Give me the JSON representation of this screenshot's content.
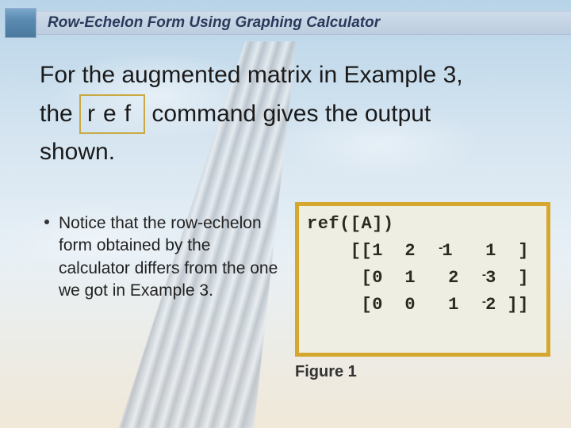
{
  "header": {
    "title": "Row-Echelon Form Using Graphing Calculator"
  },
  "body": {
    "line1_a": "For the augmented matrix in Example 3,",
    "line2_a": "the ",
    "ref_label": "ref",
    "line2_b": " command gives the output",
    "line3": "shown."
  },
  "bullet": {
    "text": "Notice that the row-echelon form obtained by the calculator differs from the one we got in Example 3."
  },
  "figure": {
    "caption": "Figure 1",
    "calc": {
      "cmd": "ref([A])",
      "row1": {
        "open": "[[",
        "a": "1",
        "b": "2",
        "c_neg": true,
        "c": "1",
        "d": "1",
        "close": "]"
      },
      "row2": {
        "open": "[",
        "a": "0",
        "b": "1",
        "c_neg": false,
        "c": "2",
        "d_neg": true,
        "d": "3",
        "close": "]"
      },
      "row3": {
        "open": "[",
        "a": "0",
        "b": "0",
        "c_neg": false,
        "c": "1",
        "d_neg": true,
        "d": "2",
        "close": "]]"
      }
    },
    "screen_bg": "#efeee2",
    "border_color": "#d6a72e"
  }
}
